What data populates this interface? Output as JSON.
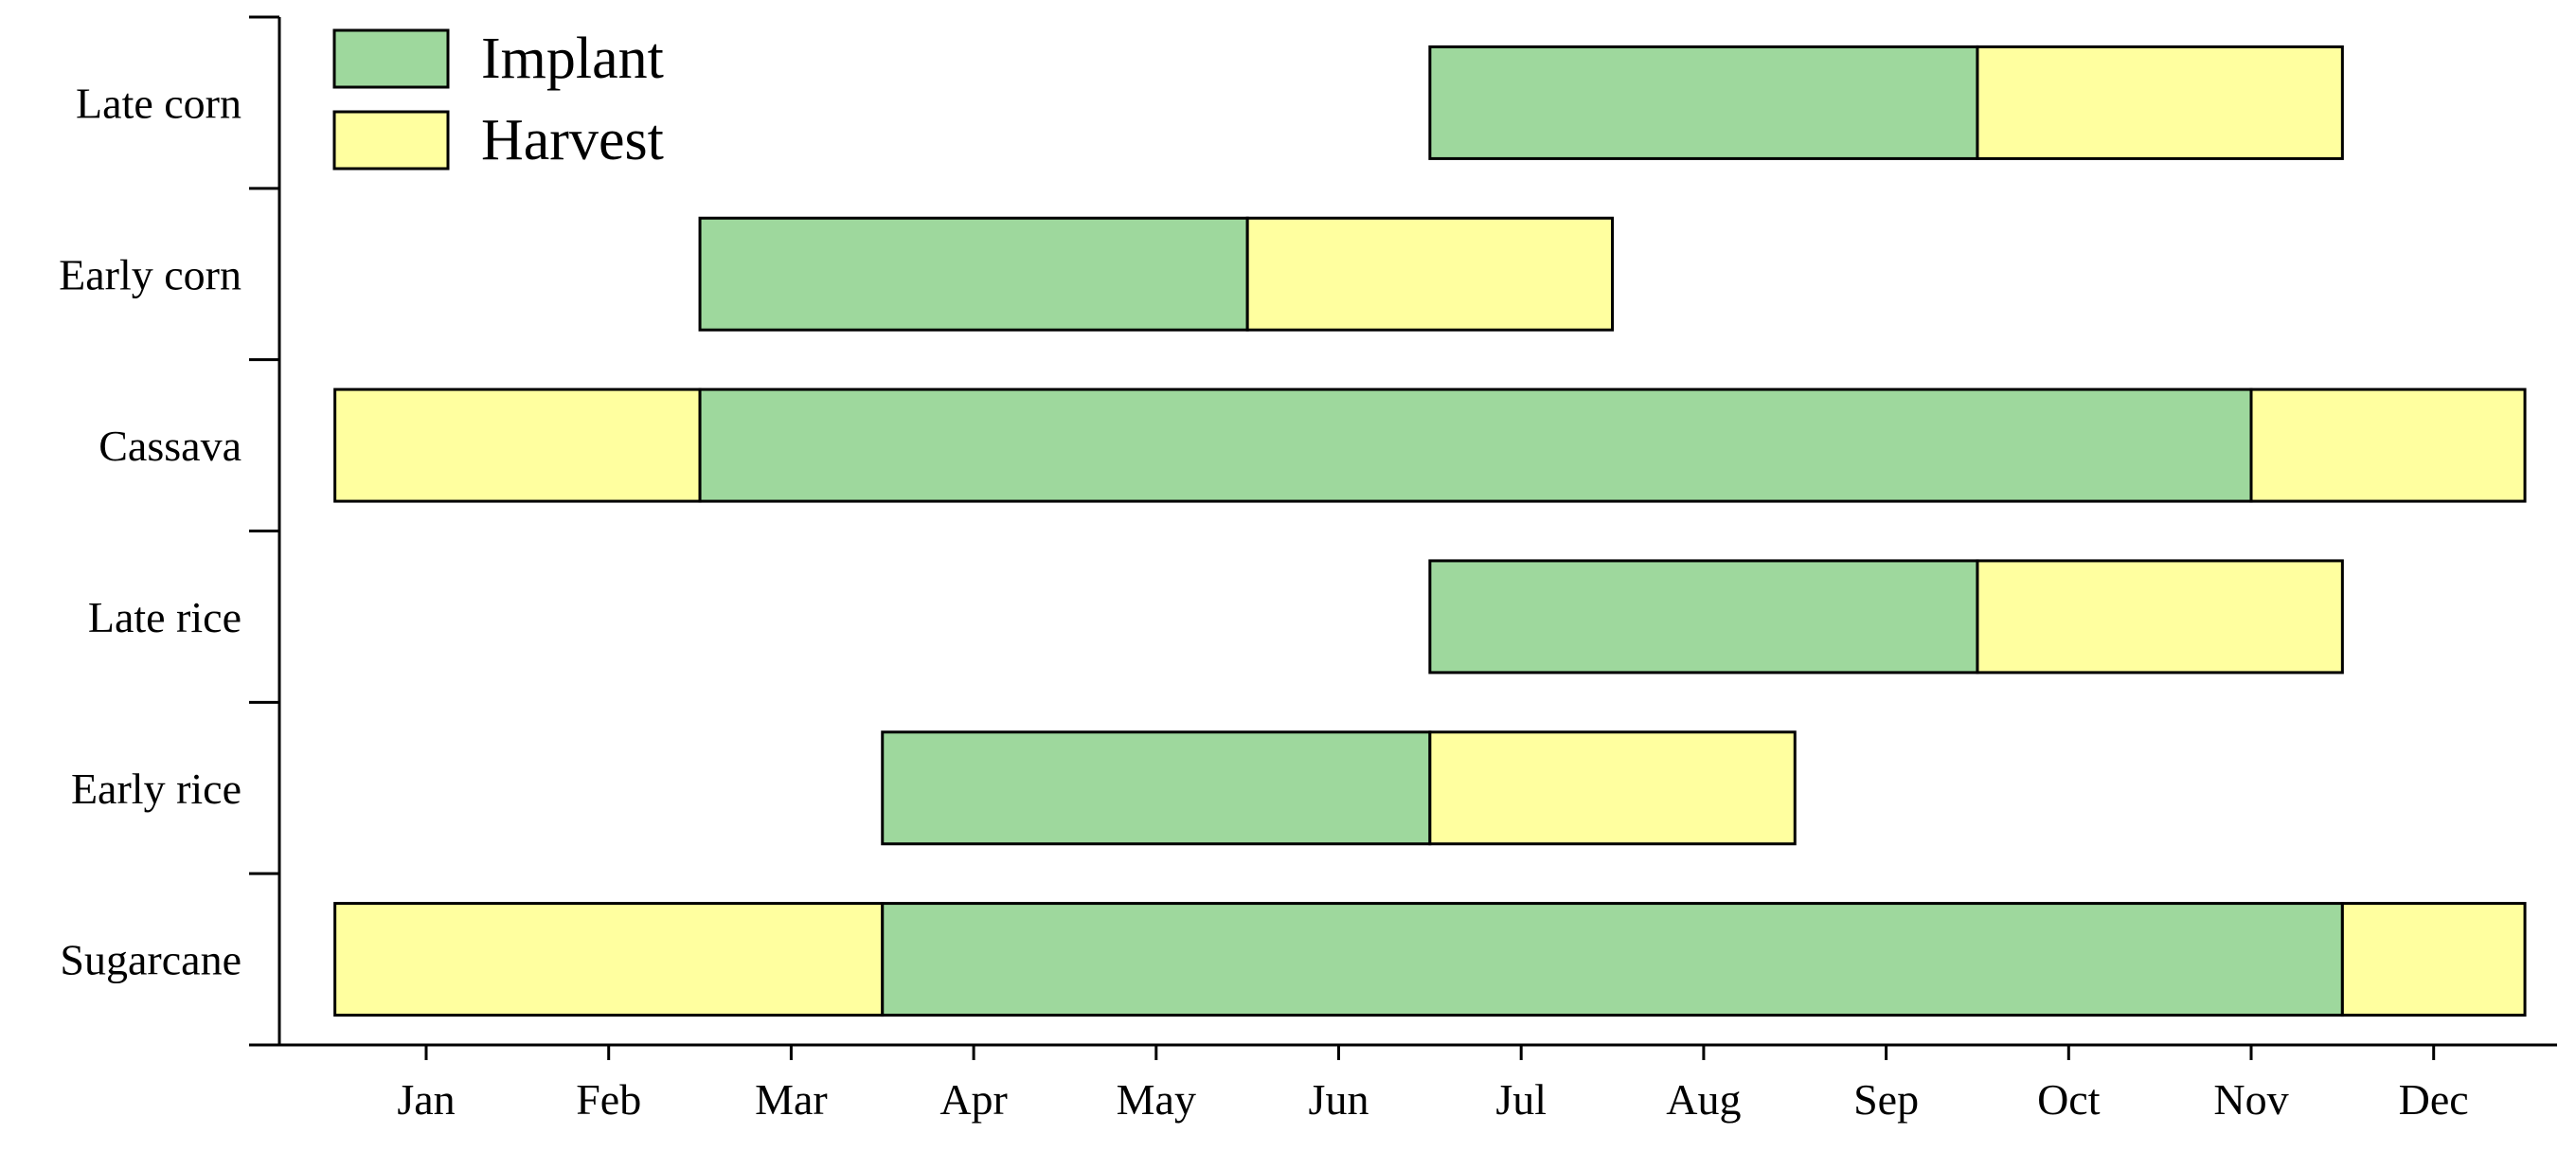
{
  "chart_data": {
    "type": "bar",
    "orientation": "horizontal-gantt",
    "title": "",
    "xlabel": "",
    "ylabel": "",
    "x_ticks": [
      "Jan",
      "Feb",
      "Mar",
      "Apr",
      "May",
      "Jun",
      "Jul",
      "Aug",
      "Sep",
      "Oct",
      "Nov",
      "Dec"
    ],
    "x_range": [
      0.5,
      12.5
    ],
    "categories": [
      "Late corn",
      "Early corn",
      "Cassava",
      "Late rice",
      "Early rice",
      "Sugarcane"
    ],
    "series": [
      {
        "name": "Implant",
        "color": "#9ed89d"
      },
      {
        "name": "Harvest",
        "color": "#ffff9f"
      }
    ],
    "segments": [
      {
        "category": "Late corn",
        "series": "Implant",
        "start": 6.5,
        "end": 9.5
      },
      {
        "category": "Late corn",
        "series": "Harvest",
        "start": 9.5,
        "end": 11.5
      },
      {
        "category": "Early corn",
        "series": "Implant",
        "start": 2.5,
        "end": 5.5
      },
      {
        "category": "Early corn",
        "series": "Harvest",
        "start": 5.5,
        "end": 7.5
      },
      {
        "category": "Cassava",
        "series": "Harvest",
        "start": 0.5,
        "end": 2.5
      },
      {
        "category": "Cassava",
        "series": "Implant",
        "start": 2.5,
        "end": 11.0
      },
      {
        "category": "Cassava",
        "series": "Harvest",
        "start": 11.0,
        "end": 12.5
      },
      {
        "category": "Late rice",
        "series": "Implant",
        "start": 6.5,
        "end": 9.5
      },
      {
        "category": "Late rice",
        "series": "Harvest",
        "start": 9.5,
        "end": 11.5
      },
      {
        "category": "Early rice",
        "series": "Implant",
        "start": 3.5,
        "end": 6.5
      },
      {
        "category": "Early rice",
        "series": "Harvest",
        "start": 6.5,
        "end": 8.5
      },
      {
        "category": "Sugarcane",
        "series": "Harvest",
        "start": 0.5,
        "end": 3.5
      },
      {
        "category": "Sugarcane",
        "series": "Implant",
        "start": 3.5,
        "end": 11.5
      },
      {
        "category": "Sugarcane",
        "series": "Harvest",
        "start": 11.5,
        "end": 12.5
      }
    ],
    "legend": {
      "position": "top-left"
    },
    "grid": false
  }
}
